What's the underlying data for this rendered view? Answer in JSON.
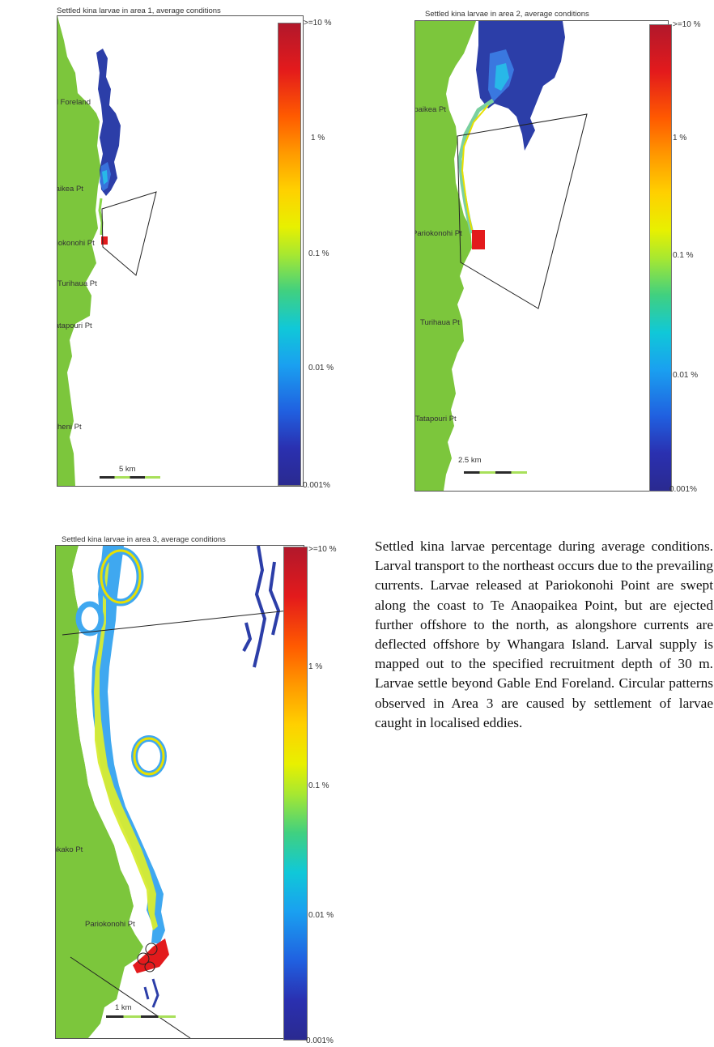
{
  "panels": [
    {
      "title": "Settled kina larvae in area 1, average conditions",
      "places": [
        "Gable End Foreland",
        "Te Anaopaikea Pt",
        "Pariokonohi Pt",
        "Turihaua Pt",
        "Tatapouri Pt",
        "Tuaheni Pt"
      ],
      "scale": "5 km",
      "colorbar": [
        ">=10 %",
        "1 %",
        "0.1 %",
        "0.01 %",
        "0.001%"
      ]
    },
    {
      "title": "Settled kina larvae in area 2, average conditions",
      "places": [
        "Te Anaopaikea Pt",
        "Pariokonohi Pt",
        "Turihaua Pt",
        "Tatapouri Pt"
      ],
      "scale": "2.5 km",
      "colorbar": [
        ">=10 %",
        "1 %",
        "0.1 %",
        "0.01 %",
        "0.001%"
      ]
    },
    {
      "title": "Settled kina larvae in area 3, average conditions",
      "places": [
        "Tapuwaeorongokako Pt",
        "Pariokonohi Pt"
      ],
      "scale": "1 km",
      "colorbar": [
        ">=10 %",
        "1 %",
        "0.1 %",
        "0.01 %",
        "0.001%"
      ]
    }
  ],
  "caption": "Settled kina larvae percentage during average conditions. Larval transport to the northeast occurs due to the prevailing currents. Larvae released at Pariokonohi Point are swept along the coast to Te Anaopaikea Point, but are ejected further offshore to the north, as alongshore currents are deflected offshore by Whangara Island. Larval supply is mapped out to the specified recruitment depth of 30 m. Larvae settle beyond Gable End Foreland. Circular patterns observed in Area 3 are caused by settlement of larvae caught in localised eddies.",
  "colors": {
    "land": "#7cc63c",
    "high": "#e31a1c",
    "low": "#2a2a90"
  }
}
